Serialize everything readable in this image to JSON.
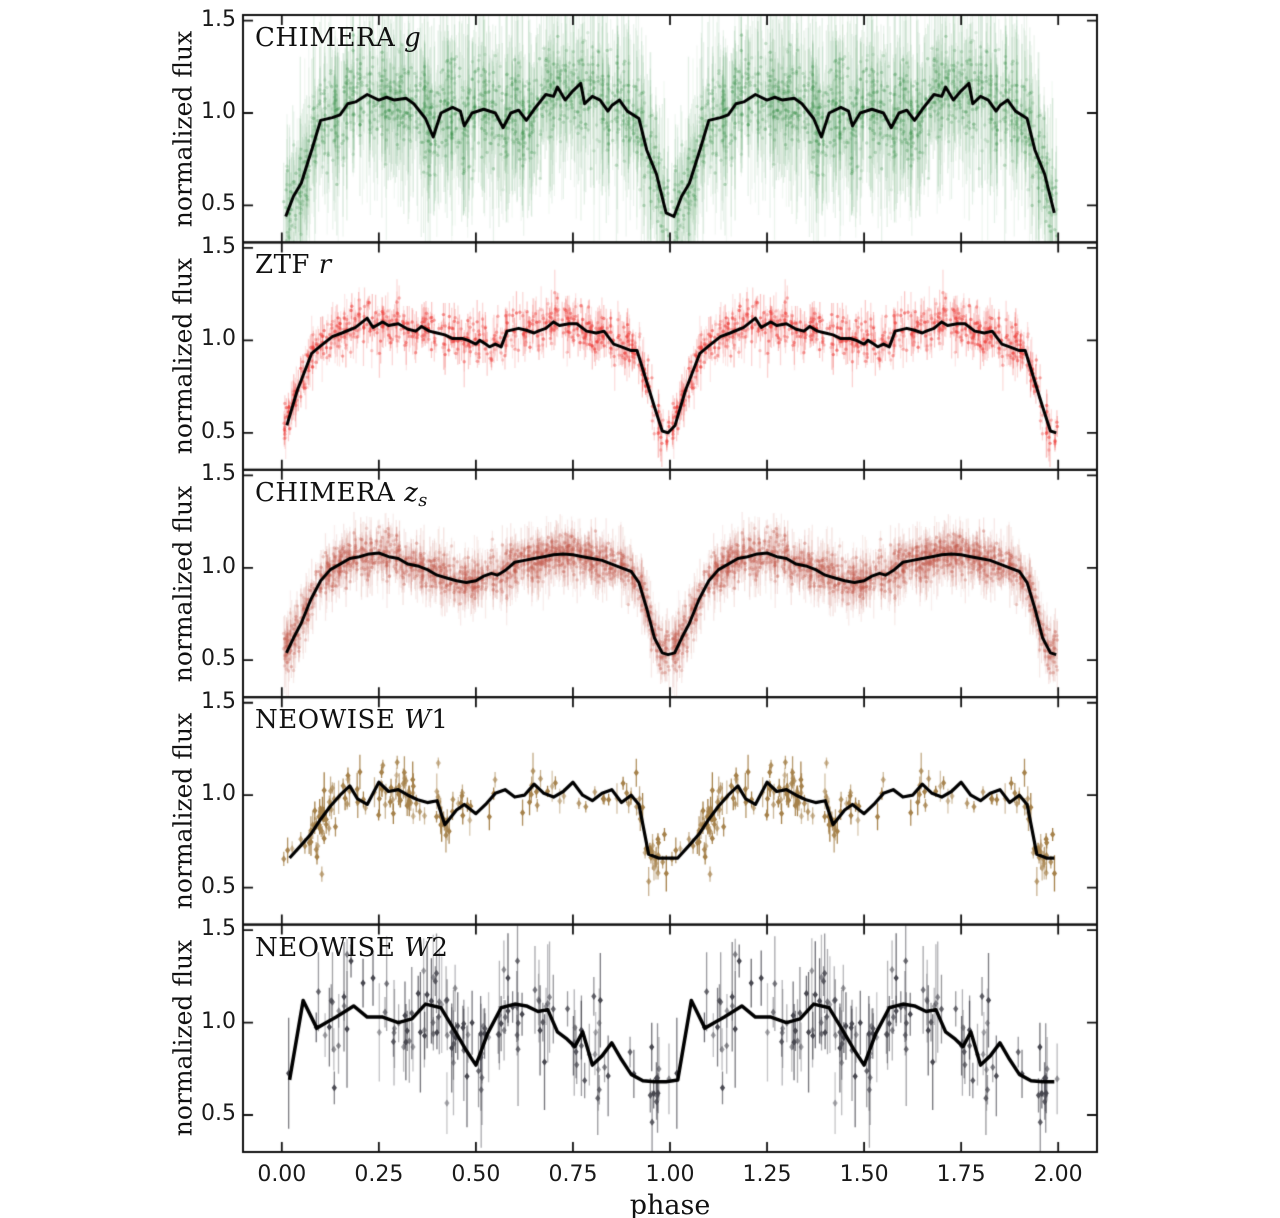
{
  "chart_data": {
    "type": "scatter",
    "description": "Five vertically stacked phased light-curve panels sharing one x axis; each shows individual flux measurements with vertical error bars plus a black binned mean curve. The phased data are plotted twice (phase and phase+1). Eclipse minima occur at integer phases.",
    "xlabel": "phase",
    "ylabel": "normalized flux",
    "xlim": [
      -0.1,
      2.1
    ],
    "ylim": [
      0.3,
      1.53
    ],
    "cycles": 2,
    "x_ticks": {
      "values": [
        0.0,
        0.25,
        0.5,
        0.75,
        1.0,
        1.25,
        1.5,
        1.75,
        2.0
      ],
      "labels": [
        "0.00",
        "0.25",
        "0.50",
        "0.75",
        "1.00",
        "1.25",
        "1.50",
        "1.75",
        "2.00"
      ]
    },
    "y_ticks": {
      "values": [
        1.5,
        1.0,
        0.5
      ],
      "labels": [
        "1.5",
        "1.0",
        "0.5"
      ]
    },
    "frame_color": "#111111",
    "mean_line_color": "#000000",
    "panels": [
      {
        "label_parts": [
          {
            "t": "CHIMERA ",
            "i": 0
          },
          {
            "t": "g",
            "i": 1
          }
        ],
        "color": "#2c8a3e",
        "marker": "dot",
        "scatter_style": {
          "n_points": 1400,
          "sigma": 0.13,
          "err_min": 0.1,
          "err_max": 0.55,
          "bar_alpha": 0.09,
          "marker_alpha": 0.22,
          "line_width": 3.0,
          "seed": 11,
          "cluster": 0
        },
        "mean_line": [
          [
            0.01,
            0.44
          ],
          [
            0.03,
            0.55
          ],
          [
            0.05,
            0.62
          ],
          [
            0.08,
            0.82
          ],
          [
            0.1,
            0.96
          ],
          [
            0.13,
            0.975
          ],
          [
            0.15,
            0.99
          ],
          [
            0.17,
            1.05
          ],
          [
            0.19,
            1.06
          ],
          [
            0.22,
            1.1
          ],
          [
            0.25,
            1.07
          ],
          [
            0.27,
            1.085
          ],
          [
            0.29,
            1.07
          ],
          [
            0.32,
            1.08
          ],
          [
            0.34,
            1.05
          ],
          [
            0.37,
            0.97
          ],
          [
            0.39,
            0.87
          ],
          [
            0.41,
            1.0
          ],
          [
            0.44,
            1.03
          ],
          [
            0.46,
            1.01
          ],
          [
            0.47,
            0.93
          ],
          [
            0.49,
            1.0
          ],
          [
            0.52,
            1.02
          ],
          [
            0.55,
            1.0
          ],
          [
            0.57,
            0.92
          ],
          [
            0.59,
            1.0
          ],
          [
            0.61,
            1.015
          ],
          [
            0.63,
            0.96
          ],
          [
            0.65,
            1.02
          ],
          [
            0.68,
            1.1
          ],
          [
            0.7,
            1.09
          ],
          [
            0.71,
            1.14
          ],
          [
            0.73,
            1.07
          ],
          [
            0.75,
            1.12
          ],
          [
            0.77,
            1.16
          ],
          [
            0.78,
            1.05
          ],
          [
            0.8,
            1.09
          ],
          [
            0.82,
            1.07
          ],
          [
            0.84,
            1.01
          ],
          [
            0.85,
            1.04
          ],
          [
            0.87,
            1.07
          ],
          [
            0.89,
            1.01
          ],
          [
            0.92,
            0.97
          ],
          [
            0.94,
            0.8
          ],
          [
            0.965,
            0.67
          ],
          [
            0.99,
            0.46
          ]
        ]
      },
      {
        "label_parts": [
          {
            "t": "ZTF ",
            "i": 0
          },
          {
            "t": "r",
            "i": 1
          }
        ],
        "color": "#ed3935",
        "marker": "dot",
        "scatter_style": {
          "n_points": 680,
          "sigma": 0.055,
          "err_min": 0.03,
          "err_max": 0.14,
          "bar_alpha": 0.2,
          "marker_alpha": 0.4,
          "line_width": 3.0,
          "seed": 23,
          "cluster": 0
        },
        "mean_line": [
          [
            0.013,
            0.54
          ],
          [
            0.04,
            0.73
          ],
          [
            0.077,
            0.93
          ],
          [
            0.1,
            0.97
          ],
          [
            0.13,
            1.02
          ],
          [
            0.155,
            1.04
          ],
          [
            0.19,
            1.07
          ],
          [
            0.22,
            1.12
          ],
          [
            0.235,
            1.07
          ],
          [
            0.26,
            1.1
          ],
          [
            0.275,
            1.08
          ],
          [
            0.3,
            1.09
          ],
          [
            0.325,
            1.06
          ],
          [
            0.345,
            1.05
          ],
          [
            0.36,
            1.075
          ],
          [
            0.38,
            1.05
          ],
          [
            0.4,
            1.04
          ],
          [
            0.42,
            1.03
          ],
          [
            0.44,
            1.01
          ],
          [
            0.465,
            1.01
          ],
          [
            0.48,
            1.0
          ],
          [
            0.5,
            0.98
          ],
          [
            0.51,
            1.0
          ],
          [
            0.525,
            0.98
          ],
          [
            0.535,
            0.965
          ],
          [
            0.55,
            0.98
          ],
          [
            0.565,
            0.965
          ],
          [
            0.58,
            1.05
          ],
          [
            0.61,
            1.065
          ],
          [
            0.63,
            1.055
          ],
          [
            0.65,
            1.04
          ],
          [
            0.66,
            1.05
          ],
          [
            0.68,
            1.065
          ],
          [
            0.7,
            1.1
          ],
          [
            0.715,
            1.08
          ],
          [
            0.74,
            1.09
          ],
          [
            0.76,
            1.09
          ],
          [
            0.785,
            1.05
          ],
          [
            0.81,
            1.04
          ],
          [
            0.83,
            1.05
          ],
          [
            0.855,
            0.98
          ],
          [
            0.875,
            0.965
          ],
          [
            0.9,
            0.945
          ],
          [
            0.915,
            0.945
          ],
          [
            0.96,
            0.64
          ],
          [
            0.98,
            0.51
          ],
          [
            0.995,
            0.5
          ]
        ]
      },
      {
        "label_parts": [
          {
            "t": "CHIMERA ",
            "i": 0
          },
          {
            "t": "z",
            "i": 1
          },
          {
            "t": "s",
            "i": 1,
            "sub": 1
          }
        ],
        "color": "#c3584a",
        "marker": "dot",
        "scatter_style": {
          "n_points": 1500,
          "sigma": 0.055,
          "err_min": 0.04,
          "err_max": 0.16,
          "bar_alpha": 0.12,
          "marker_alpha": 0.28,
          "line_width": 3.0,
          "seed": 37,
          "cluster": 0
        },
        "mean_line": [
          [
            0.012,
            0.54
          ],
          [
            0.03,
            0.62
          ],
          [
            0.05,
            0.7
          ],
          [
            0.075,
            0.83
          ],
          [
            0.1,
            0.93
          ],
          [
            0.125,
            0.99
          ],
          [
            0.15,
            1.02
          ],
          [
            0.175,
            1.05
          ],
          [
            0.2,
            1.06
          ],
          [
            0.225,
            1.075
          ],
          [
            0.25,
            1.08
          ],
          [
            0.275,
            1.06
          ],
          [
            0.3,
            1.05
          ],
          [
            0.325,
            1.02
          ],
          [
            0.35,
            1.01
          ],
          [
            0.375,
            0.99
          ],
          [
            0.4,
            0.96
          ],
          [
            0.425,
            0.945
          ],
          [
            0.45,
            0.93
          ],
          [
            0.475,
            0.92
          ],
          [
            0.5,
            0.93
          ],
          [
            0.52,
            0.955
          ],
          [
            0.54,
            0.97
          ],
          [
            0.555,
            0.96
          ],
          [
            0.575,
            0.985
          ],
          [
            0.6,
            1.03
          ],
          [
            0.625,
            1.04
          ],
          [
            0.65,
            1.05
          ],
          [
            0.675,
            1.06
          ],
          [
            0.7,
            1.07
          ],
          [
            0.725,
            1.075
          ],
          [
            0.75,
            1.07
          ],
          [
            0.775,
            1.06
          ],
          [
            0.8,
            1.05
          ],
          [
            0.825,
            1.04
          ],
          [
            0.85,
            1.02
          ],
          [
            0.875,
            1.0
          ],
          [
            0.9,
            0.98
          ],
          [
            0.92,
            0.92
          ],
          [
            0.94,
            0.78
          ],
          [
            0.96,
            0.62
          ],
          [
            0.98,
            0.54
          ],
          [
            0.995,
            0.53
          ]
        ]
      },
      {
        "label_parts": [
          {
            "t": "NEOWISE ",
            "i": 0
          },
          {
            "t": "W",
            "i": 1
          },
          {
            "t": "1",
            "i": 0
          }
        ],
        "color": "#a5814a",
        "marker": "diamond",
        "scatter_style": {
          "n_points": 175,
          "sigma": 0.07,
          "err_min": 0.03,
          "err_max": 0.1,
          "bar_alpha": 0.75,
          "marker_alpha": 0.85,
          "line_width": 3.2,
          "seed": 51,
          "cluster": 1
        },
        "mean_line": [
          [
            0.02,
            0.66
          ],
          [
            0.05,
            0.73
          ],
          [
            0.075,
            0.79
          ],
          [
            0.1,
            0.87
          ],
          [
            0.125,
            0.94
          ],
          [
            0.15,
            1.0
          ],
          [
            0.175,
            1.05
          ],
          [
            0.195,
            0.98
          ],
          [
            0.22,
            0.95
          ],
          [
            0.25,
            1.07
          ],
          [
            0.275,
            1.02
          ],
          [
            0.3,
            1.03
          ],
          [
            0.325,
            1.0
          ],
          [
            0.35,
            0.975
          ],
          [
            0.375,
            0.96
          ],
          [
            0.4,
            0.97
          ],
          [
            0.42,
            0.84
          ],
          [
            0.45,
            0.92
          ],
          [
            0.47,
            0.95
          ],
          [
            0.5,
            0.9
          ],
          [
            0.525,
            0.95
          ],
          [
            0.55,
            1.01
          ],
          [
            0.575,
            1.03
          ],
          [
            0.6,
            0.99
          ],
          [
            0.625,
            1.0
          ],
          [
            0.65,
            1.06
          ],
          [
            0.675,
            1.01
          ],
          [
            0.7,
            0.99
          ],
          [
            0.725,
            1.02
          ],
          [
            0.75,
            1.07
          ],
          [
            0.775,
            1.0
          ],
          [
            0.8,
            0.97
          ],
          [
            0.825,
            1.01
          ],
          [
            0.85,
            1.03
          ],
          [
            0.875,
            0.96
          ],
          [
            0.9,
            1.0
          ],
          [
            0.92,
            0.95
          ],
          [
            0.945,
            0.68
          ],
          [
            0.97,
            0.66
          ],
          [
            0.99,
            0.66
          ]
        ]
      },
      {
        "label_parts": [
          {
            "t": "NEOWISE ",
            "i": 0
          },
          {
            "t": "W",
            "i": 1
          },
          {
            "t": "2",
            "i": 0
          }
        ],
        "color": "#47474f",
        "marker": "diamond",
        "scatter_style": {
          "n_points": 135,
          "sigma": 0.13,
          "err_min": 0.08,
          "err_max": 0.33,
          "bar_alpha": 0.55,
          "marker_alpha": 0.8,
          "line_width": 3.5,
          "seed": 67,
          "cluster": 1
        },
        "mean_line": [
          [
            0.02,
            0.69
          ],
          [
            0.055,
            1.12
          ],
          [
            0.09,
            0.97
          ],
          [
            0.115,
            1.0
          ],
          [
            0.14,
            1.03
          ],
          [
            0.185,
            1.09
          ],
          [
            0.22,
            1.03
          ],
          [
            0.26,
            1.03
          ],
          [
            0.3,
            1.0
          ],
          [
            0.335,
            1.02
          ],
          [
            0.37,
            1.1
          ],
          [
            0.41,
            1.08
          ],
          [
            0.45,
            0.94
          ],
          [
            0.475,
            0.85
          ],
          [
            0.5,
            0.77
          ],
          [
            0.53,
            0.94
          ],
          [
            0.565,
            1.08
          ],
          [
            0.6,
            1.1
          ],
          [
            0.63,
            1.09
          ],
          [
            0.66,
            1.06
          ],
          [
            0.685,
            1.07
          ],
          [
            0.71,
            0.95
          ],
          [
            0.735,
            0.91
          ],
          [
            0.755,
            0.87
          ],
          [
            0.775,
            0.95
          ],
          [
            0.8,
            0.77
          ],
          [
            0.825,
            0.82
          ],
          [
            0.85,
            0.89
          ],
          [
            0.875,
            0.8
          ],
          [
            0.9,
            0.72
          ],
          [
            0.93,
            0.685
          ],
          [
            0.96,
            0.68
          ],
          [
            0.99,
            0.68
          ]
        ]
      }
    ]
  }
}
